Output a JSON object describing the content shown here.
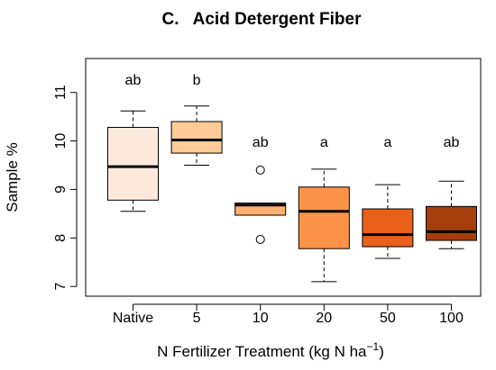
{
  "chart_data": {
    "type": "box",
    "title": "C.   Acid Detergent Fiber",
    "xlabel": "N Fertilizer Treatment (kg N ha",
    "xlabel_sup": "−1",
    "xlabel_tail": ")",
    "ylabel": "Sample %",
    "ylim": [
      6.8,
      11.7
    ],
    "yticks": [
      7,
      8,
      9,
      10,
      11
    ],
    "grid": false,
    "categories": [
      "Native",
      "5",
      "10",
      "20",
      "50",
      "100"
    ],
    "boxes": [
      {
        "category": "Native",
        "whisker_low": 8.55,
        "q1": 8.78,
        "median": 9.47,
        "q3": 10.28,
        "whisker_high": 10.62,
        "outliers": [],
        "color": "#FDE9DC",
        "significance": "ab"
      },
      {
        "category": "5",
        "whisker_low": 9.5,
        "q1": 9.75,
        "median": 10.02,
        "q3": 10.4,
        "whisker_high": 10.72,
        "outliers": [],
        "color": "#FCCB98",
        "significance": "b"
      },
      {
        "category": "10",
        "whisker_low": 8.47,
        "q1": 8.47,
        "median": 8.68,
        "q3": 8.72,
        "whisker_high": 8.72,
        "outliers": [
          9.4,
          7.97
        ],
        "color": "#FDB071",
        "significance": "ab"
      },
      {
        "category": "20",
        "whisker_low": 7.1,
        "q1": 7.78,
        "median": 8.55,
        "q3": 9.05,
        "whisker_high": 9.42,
        "outliers": [],
        "color": "#FD9348",
        "significance": "a"
      },
      {
        "category": "50",
        "whisker_low": 7.58,
        "q1": 7.82,
        "median": 8.07,
        "q3": 8.6,
        "whisker_high": 9.1,
        "outliers": [],
        "color": "#E8601A",
        "significance": "a"
      },
      {
        "category": "100",
        "whisker_low": 7.78,
        "q1": 7.95,
        "median": 8.13,
        "q3": 8.65,
        "whisker_high": 9.17,
        "outliers": [],
        "color": "#A63E0C",
        "significance": "ab"
      }
    ]
  }
}
